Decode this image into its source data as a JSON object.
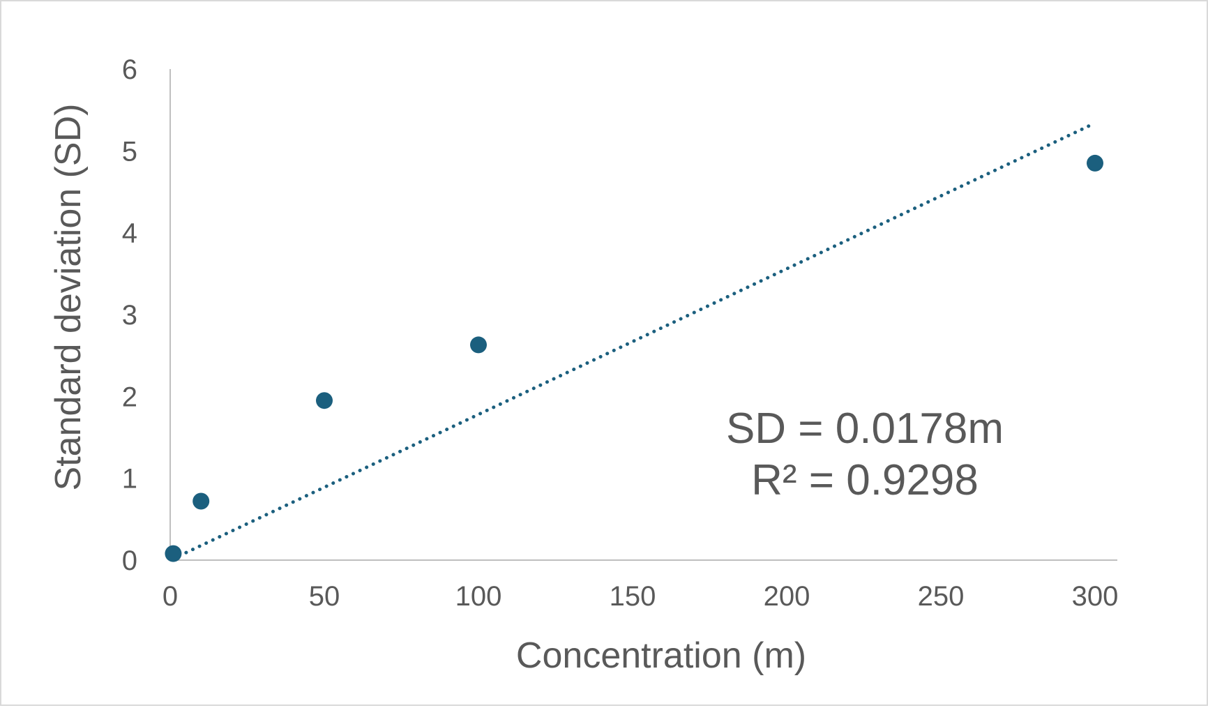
{
  "chart_data": {
    "type": "scatter",
    "title": "",
    "xlabel": "Concentration (m)",
    "ylabel": "Standard deviation (SD)",
    "xlim": [
      0,
      310
    ],
    "ylim": [
      0,
      6
    ],
    "x_ticks": [
      0,
      50,
      100,
      150,
      200,
      250,
      300
    ],
    "y_ticks": [
      0,
      1,
      2,
      3,
      4,
      5,
      6
    ],
    "grid": false,
    "legend": "none",
    "series": [
      {
        "x": [
          1,
          10,
          50,
          100,
          300
        ],
        "y": [
          0.08,
          0.72,
          1.95,
          2.63,
          4.85
        ],
        "color": "#1b5f7e"
      }
    ],
    "trendline": {
      "type": "linear",
      "slope": 0.0178,
      "intercept": 0,
      "x_range": [
        0,
        300
      ],
      "style": "dotted",
      "color": "#1b5f7e"
    },
    "annotations": {
      "equation": "SD = 0.0178m",
      "r_squared": "R² = 0.9298"
    },
    "colors": {
      "axis": "#bfbfbf",
      "text": "#595959",
      "marker": "#1b5f7e"
    }
  }
}
